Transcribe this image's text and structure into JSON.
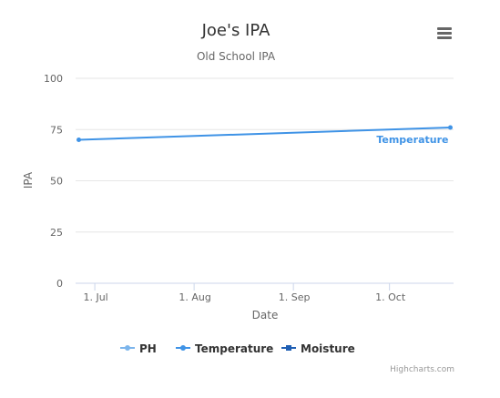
{
  "chart_data": {
    "type": "line",
    "title": "Joe's IPA",
    "subtitle": "Old School IPA",
    "xlabel": "Date",
    "ylabel": "IPA",
    "x_ticks": [
      "1. Jul",
      "1. Aug",
      "1. Sep",
      "1. Oct"
    ],
    "y_ticks": [
      0,
      25,
      50,
      75,
      100
    ],
    "ylim": [
      0,
      100
    ],
    "grid": true,
    "legend_position": "bottom",
    "series": [
      {
        "name": "PH",
        "color": "#7cb5ec",
        "points": []
      },
      {
        "name": "Temperature",
        "color": "#3f93e6",
        "data_label": "Temperature",
        "points": [
          {
            "x": "2014-06-26",
            "y": 70
          },
          {
            "x": "2014-10-20",
            "y": 76
          }
        ]
      },
      {
        "name": "Moisture",
        "color": "#1f5fb4",
        "points": []
      }
    ]
  },
  "ui": {
    "menu_icon": "hamburger-menu-icon",
    "credits": "Highcharts.com"
  }
}
